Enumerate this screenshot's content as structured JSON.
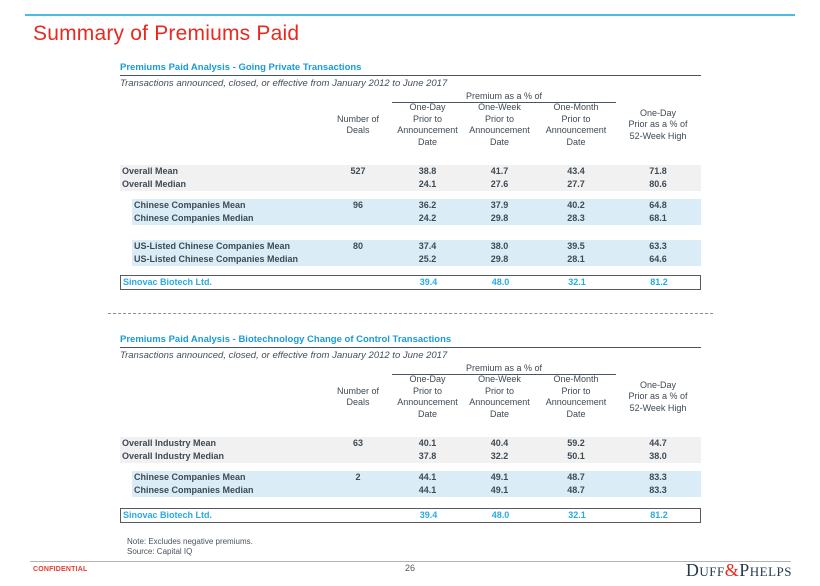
{
  "slide": {
    "title": "Summary of Premiums Paid",
    "note": "Note: Excludes negative premiums.",
    "source": "Source: Capital IQ",
    "footer": {
      "confidential": "CONFIDENTIAL",
      "page_number": "26",
      "logo_duff": "Duff",
      "logo_amp": "&",
      "logo_phelps": "Phelps"
    }
  },
  "colors": {
    "accent_red": "#e8291f",
    "accent_cyan": "#29abe2",
    "table_title_blue": "#199cd8",
    "text_dark": "#3e4a54",
    "row_gray_bg": "#f1f1f1",
    "row_blue_bg": "#daedf7",
    "top_rule_blue": "#49bce6"
  },
  "header_labels": {
    "group": "Premium as a % of",
    "deals": "Number of\nDeals",
    "one_day": "One-Day\nPrior to\nAnnouncement\nDate",
    "one_week": "One-Week\nPrior to\nAnnouncement\nDate",
    "one_month": "One-Month\nPrior to\nAnnouncement\nDate",
    "week52": "One-Day\nPrior as a % of\n52-Week High"
  },
  "tables": [
    {
      "title": "Premiums Paid Analysis - Going Private Transactions",
      "subtitle": "Transactions announced, closed, or effective from January 2012 to June 2017",
      "rows": [
        {
          "label": "Overall Mean",
          "deals": "527",
          "one_day": "38.8",
          "one_week": "41.7",
          "one_month": "43.4",
          "week52": "71.8"
        },
        {
          "label": "Overall Median",
          "deals": "",
          "one_day": "24.1",
          "one_week": "27.6",
          "one_month": "27.7",
          "week52": "80.6"
        },
        {
          "label": "Chinese Companies Mean",
          "deals": "96",
          "one_day": "36.2",
          "one_week": "37.9",
          "one_month": "40.2",
          "week52": "64.8"
        },
        {
          "label": "Chinese Companies Median",
          "deals": "",
          "one_day": "24.2",
          "one_week": "29.8",
          "one_month": "28.3",
          "week52": "68.1"
        },
        {
          "label": "US-Listed Chinese Companies Mean",
          "deals": "80",
          "one_day": "37.4",
          "one_week": "38.0",
          "one_month": "39.5",
          "week52": "63.3"
        },
        {
          "label": "US-Listed Chinese Companies Median",
          "deals": "",
          "one_day": "25.2",
          "one_week": "29.8",
          "one_month": "28.1",
          "week52": "64.6"
        }
      ],
      "subject_row": {
        "label": "Sinovac Biotech Ltd.",
        "deals": "",
        "one_day": "39.4",
        "one_week": "48.0",
        "one_month": "32.1",
        "week52": "81.2"
      }
    },
    {
      "title": "Premiums Paid Analysis -  Biotechnology Change of Control Transactions",
      "subtitle": "Transactions announced, closed, or effective from January 2012 to June 2017",
      "rows": [
        {
          "label": "Overall Industry Mean",
          "deals": "63",
          "one_day": "40.1",
          "one_week": "40.4",
          "one_month": "59.2",
          "week52": "44.7"
        },
        {
          "label": "Overall Industry Median",
          "deals": "",
          "one_day": "37.8",
          "one_week": "32.2",
          "one_month": "50.1",
          "week52": "38.0"
        },
        {
          "label": "Chinese Companies Mean",
          "deals": "2",
          "one_day": "44.1",
          "one_week": "49.1",
          "one_month": "48.7",
          "week52": "83.3"
        },
        {
          "label": "Chinese Companies Median",
          "deals": "",
          "one_day": "44.1",
          "one_week": "49.1",
          "one_month": "48.7",
          "week52": "83.3"
        }
      ],
      "subject_row": {
        "label": "Sinovac Biotech Ltd.",
        "deals": "",
        "one_day": "39.4",
        "one_week": "48.0",
        "one_month": "32.1",
        "week52": "81.2"
      }
    }
  ]
}
